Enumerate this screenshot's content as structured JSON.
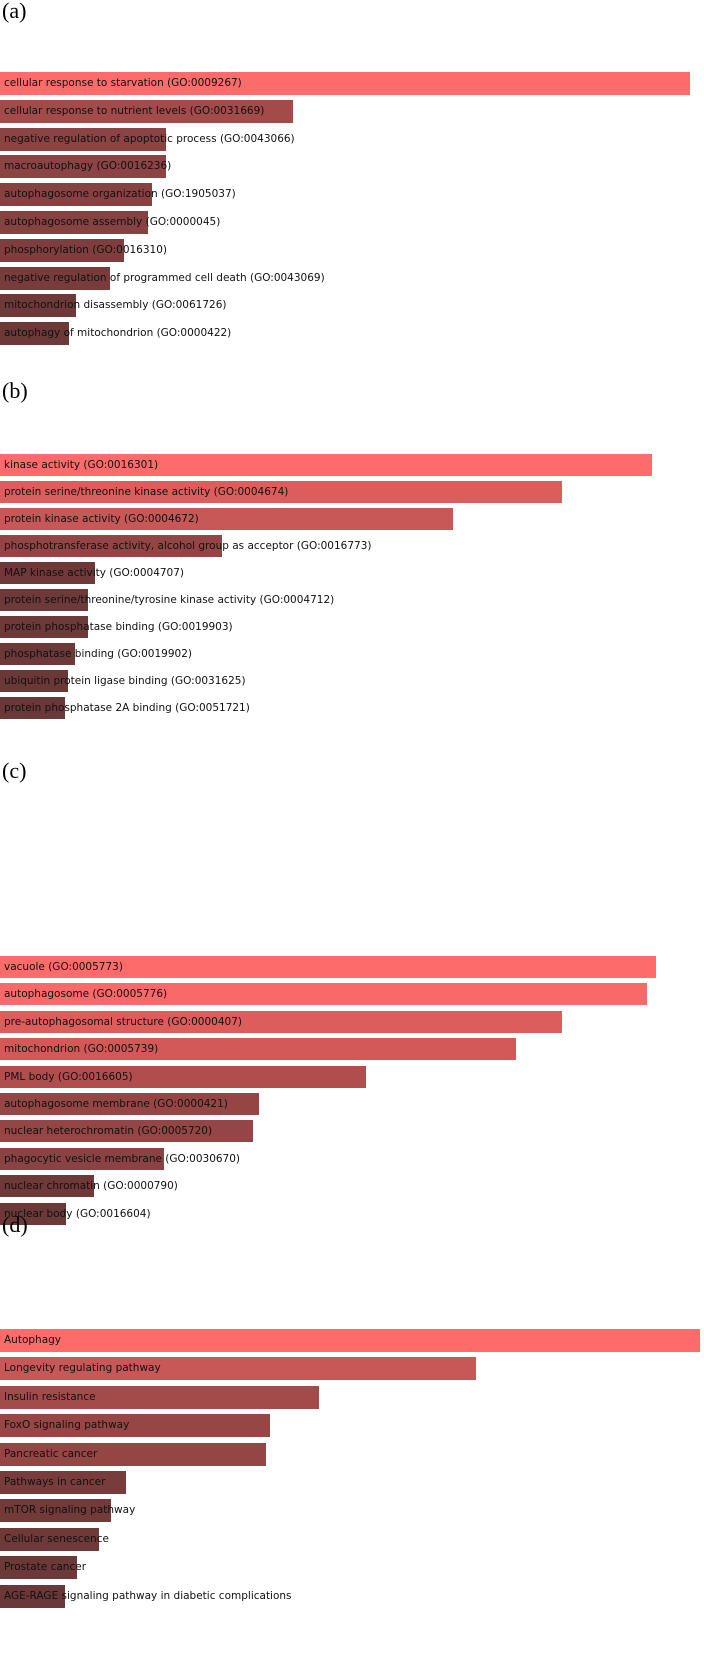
{
  "chart_data": [
    {
      "type": "bar",
      "panel_label": "(a)",
      "categories": [
        "cellular response to starvation (GO:0009267)",
        "cellular response to nutrient levels (GO:0031669)",
        "negative regulation of apoptotic process (GO:0043066)",
        "macroautophagy (GO:0016236)",
        "autophagosome organization (GO:1905037)",
        "autophagosome assembly (GO:0000045)",
        "phosphorylation (GO:0016310)",
        "negative regulation of programmed cell death (GO:0043069)",
        "mitochondrion disassembly (GO:0061726)",
        "autophagy of mitochondrion (GO:0000422)"
      ],
      "values": [
        100,
        42.5,
        24,
        24,
        22,
        21.5,
        18,
        16,
        11,
        10
      ],
      "colors": [
        "#fe6b6b",
        "#a34a4a",
        "#8c4343",
        "#8c4343",
        "#884141",
        "#864141",
        "#7e3e3e",
        "#783c3c",
        "#6e3939",
        "#6c3838"
      ]
    },
    {
      "type": "bar",
      "panel_label": "(b)",
      "categories": [
        "kinase activity (GO:0016301)",
        "protein serine/threonine kinase activity (GO:0004674)",
        "protein kinase activity (GO:0004672)",
        "phosphotransferase activity, alcohol group as acceptor (GO:0016773)",
        "MAP kinase activity (GO:0004707)",
        "protein serine/threonine/tyrosine kinase activity (GO:0004712)",
        "protein phosphatase binding (GO:0019903)",
        "phosphatase binding (GO:0019902)",
        "ubiquitin protein ligase binding (GO:0031625)",
        "protein phosphatase 2A binding (GO:0051721)"
      ],
      "values": [
        100,
        86.2,
        69.5,
        34,
        14.5,
        13.5,
        13.5,
        11.5,
        10.5,
        10
      ],
      "colors": [
        "#fe6b6b",
        "#dd5d5d",
        "#c85858",
        "#934545",
        "#6f3939",
        "#6e3939",
        "#6e3939",
        "#6c3838",
        "#6b3838",
        "#6a3838"
      ]
    },
    {
      "type": "bar",
      "panel_label": "(c)",
      "categories": [
        "vacuole (GO:0005773)",
        "autophagosome (GO:0005776)",
        "pre-autophagosomal structure (GO:0000407)",
        "mitochondrion (GO:0005739)",
        "PML body (GO:0016605)",
        "autophagosome membrane (GO:0000421)",
        "nuclear heterochromatin (GO:0005720)",
        "phagocytic vesicle membrane (GO:0030670)",
        "nuclear chromatin (GO:0000790)",
        "nuclear body (GO:0016604)"
      ],
      "values": [
        100,
        98.7,
        85.7,
        78.7,
        55.8,
        39.5,
        38.5,
        25,
        14.4,
        10
      ],
      "colors": [
        "#fe6b6b",
        "#f96969",
        "#dd5d5d",
        "#d35959",
        "#b04e4e",
        "#964545",
        "#944545",
        "#8a4242",
        "#703939",
        "#6c3838"
      ]
    },
    {
      "type": "bar",
      "panel_label": "(d)",
      "categories": [
        "Autophagy",
        "Longevity regulating pathway",
        "Insulin resistance",
        "FoxO signaling pathway",
        "Pancreatic cancer",
        "Pathways in cancer",
        "mTOR signaling pathway",
        "Cellular senescence",
        "Prostate cancer",
        "AGE-RAGE signaling pathway in diabetic complications"
      ],
      "values": [
        100,
        68,
        45.5,
        38.5,
        38,
        18,
        15.8,
        14.2,
        11,
        9.3
      ],
      "colors": [
        "#fe6b6b",
        "#c85858",
        "#a34a4a",
        "#974646",
        "#964545",
        "#783c3c",
        "#733a3a",
        "#703939",
        "#6d3838",
        "#6a3838"
      ]
    }
  ]
}
